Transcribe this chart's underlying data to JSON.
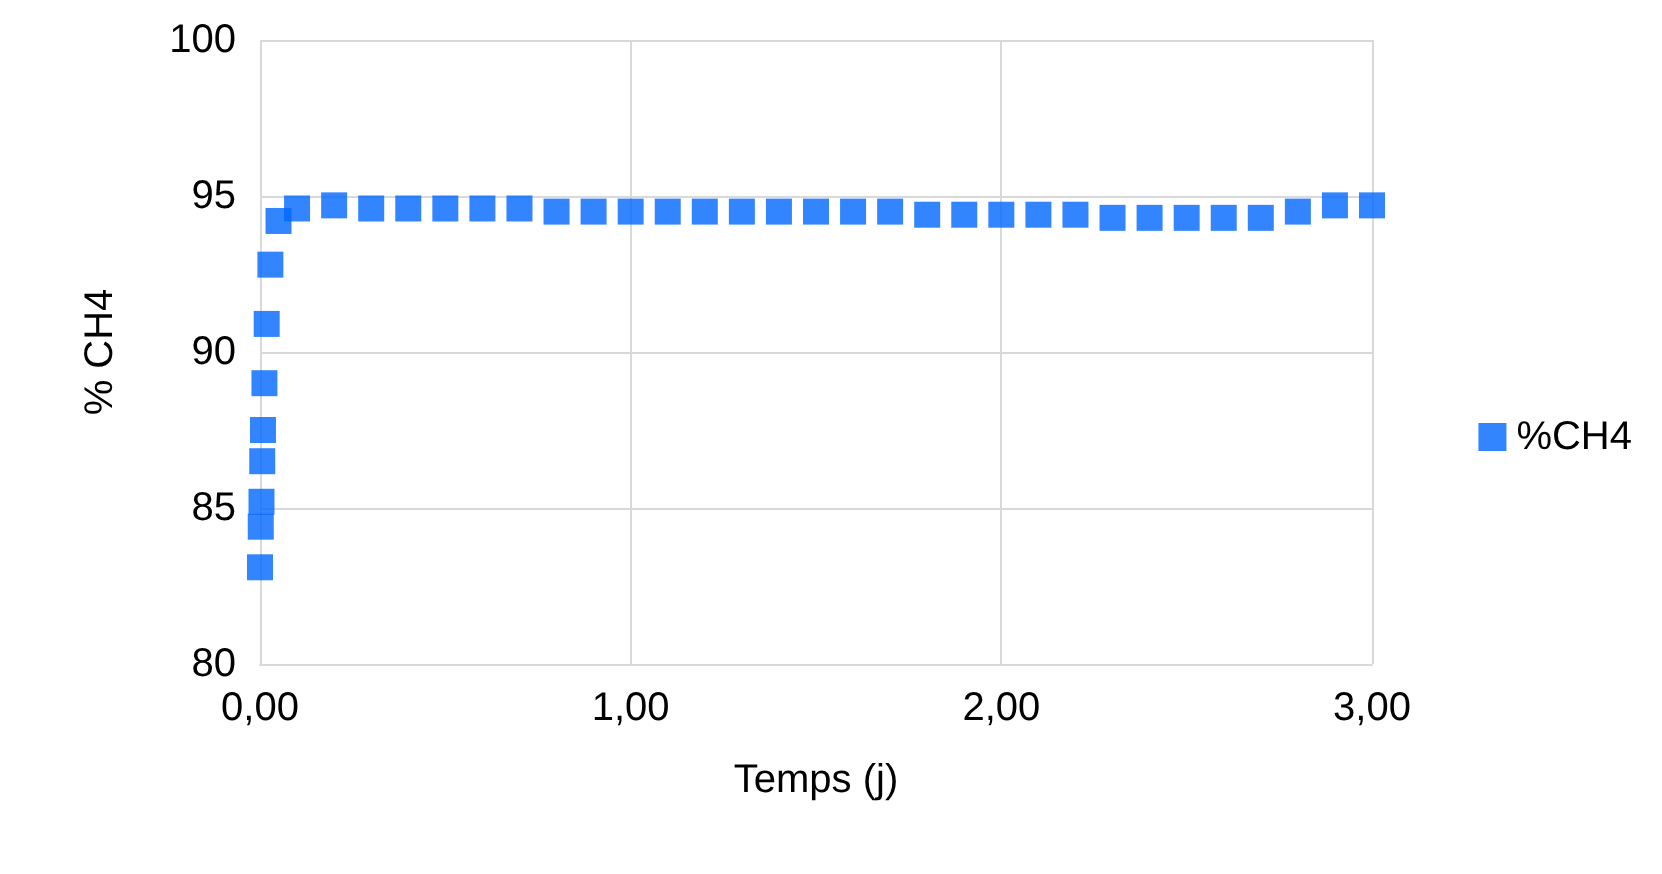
{
  "chart_data": {
    "type": "scatter",
    "xlabel": "Temps (j)",
    "ylabel": "% CH4",
    "xlim": [
      0,
      3
    ],
    "xticks": [
      {
        "value": 0,
        "label": "0,00"
      },
      {
        "value": 1,
        "label": "1,00"
      },
      {
        "value": 2,
        "label": "2,00"
      },
      {
        "value": 3,
        "label": "3,00"
      }
    ],
    "ylim": [
      80,
      100
    ],
    "yticks": [
      80,
      85,
      90,
      95,
      100
    ],
    "grid": true,
    "marker": "square",
    "legend": "right",
    "series": [
      {
        "name": "%CH4",
        "color": "#0066ff",
        "x": [
          0.0,
          0.002,
          0.004,
          0.006,
          0.008,
          0.012,
          0.018,
          0.028,
          0.05,
          0.1,
          0.2,
          0.3,
          0.4,
          0.5,
          0.6,
          0.7,
          0.8,
          0.9,
          1.0,
          1.1,
          1.2,
          1.3,
          1.4,
          1.5,
          1.6,
          1.7,
          1.8,
          1.9,
          2.0,
          2.1,
          2.2,
          2.3,
          2.4,
          2.5,
          2.6,
          2.7,
          2.8,
          2.9,
          3.0
        ],
        "values": [
          83.1,
          84.4,
          85.2,
          86.5,
          87.5,
          89.0,
          90.9,
          92.8,
          94.2,
          94.6,
          94.7,
          94.6,
          94.6,
          94.6,
          94.6,
          94.6,
          94.5,
          94.5,
          94.5,
          94.5,
          94.5,
          94.5,
          94.5,
          94.5,
          94.5,
          94.5,
          94.4,
          94.4,
          94.4,
          94.4,
          94.4,
          94.3,
          94.3,
          94.3,
          94.3,
          94.3,
          94.5,
          94.7,
          94.7
        ]
      }
    ]
  }
}
